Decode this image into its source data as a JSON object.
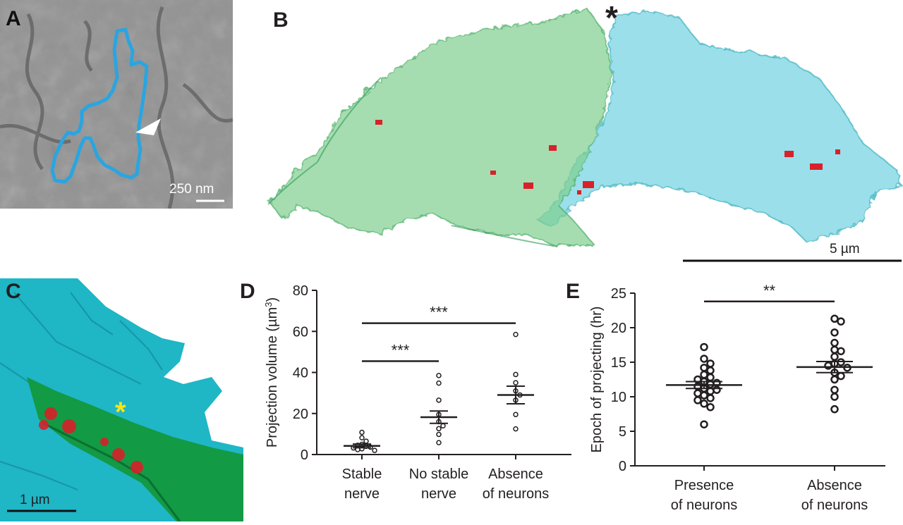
{
  "panels": {
    "a": {
      "letter": "A",
      "scale_bar": "250 nm"
    },
    "b": {
      "letter": "B",
      "scale_bar": "5 µm",
      "marker": "*"
    },
    "c": {
      "letter": "C",
      "scale_bar": "1 µm",
      "marker": "*"
    },
    "d": {
      "letter": "D"
    },
    "e": {
      "letter": "E"
    }
  },
  "colors": {
    "em_background": "#8a8a8a",
    "outline_blue": "#2aa5e0",
    "cell_green": "#7fcf8f",
    "cell_cyan": "#79d4e3",
    "render_cyan": "#1fb6c6",
    "render_green": "#129a45",
    "puncta_red": "#d8212a",
    "asterisk_yellow": "#f5e51a"
  },
  "chart_data": [
    {
      "id": "D",
      "type": "scatter",
      "ylabel": "Projection volume (µm³)",
      "ylim": [
        0,
        80
      ],
      "yticks": [
        0,
        20,
        40,
        60,
        80
      ],
      "categories": [
        "Stable nerve",
        "No stable nerve",
        "Absence of neurons"
      ],
      "category_lines": [
        [
          "Stable",
          "nerve"
        ],
        [
          "No stable",
          "nerve"
        ],
        [
          "Absence",
          "of neurons"
        ]
      ],
      "means": [
        4.2,
        18.2,
        29.0
      ],
      "sem": [
        0.9,
        3.0,
        4.3
      ],
      "points": [
        [
          10.8,
          8.2,
          6.5,
          5.0,
          4.5,
          4.0,
          3.6,
          3.2,
          2.8,
          2.4,
          2.0
        ],
        [
          38.5,
          34.8,
          26.5,
          19.5,
          16.0,
          14.0,
          12.6,
          9.8,
          5.8
        ],
        [
          58.5,
          39.0,
          35.0,
          31.0,
          29.0,
          26.5,
          19.5,
          12.5
        ]
      ],
      "significance": [
        {
          "from": 0,
          "to": 2,
          "label": "***",
          "y": 64
        },
        {
          "from": 0,
          "to": 1,
          "label": "***",
          "y": 45.5
        }
      ]
    },
    {
      "id": "E",
      "type": "scatter",
      "ylabel": "Epoch of projecting (hr)",
      "ylim": [
        0,
        25
      ],
      "yticks": [
        0,
        5,
        10,
        15,
        20,
        25
      ],
      "categories": [
        "Presence of neurons",
        "Absence of neurons"
      ],
      "category_lines": [
        [
          "Presence",
          "of neurons"
        ],
        [
          "Absence",
          "of neurons"
        ]
      ],
      "means": [
        11.7,
        14.3
      ],
      "sem": [
        0.5,
        0.8
      ],
      "points": [
        [
          17.2,
          15.5,
          14.8,
          14.2,
          13.8,
          13.2,
          12.8,
          12.5,
          12.2,
          12.0,
          11.8,
          11.5,
          11.2,
          11.0,
          10.8,
          10.5,
          10.2,
          9.8,
          9.5,
          9.0,
          8.5,
          6.0
        ],
        [
          21.3,
          20.9,
          19.3,
          17.8,
          16.8,
          16.6,
          15.8,
          15.0,
          14.8,
          14.5,
          14.2,
          13.5,
          13.0,
          12.5,
          11.0,
          10.0,
          8.2
        ]
      ],
      "significance": [
        {
          "from": 0,
          "to": 1,
          "label": "**",
          "y": 23.8
        }
      ]
    }
  ]
}
